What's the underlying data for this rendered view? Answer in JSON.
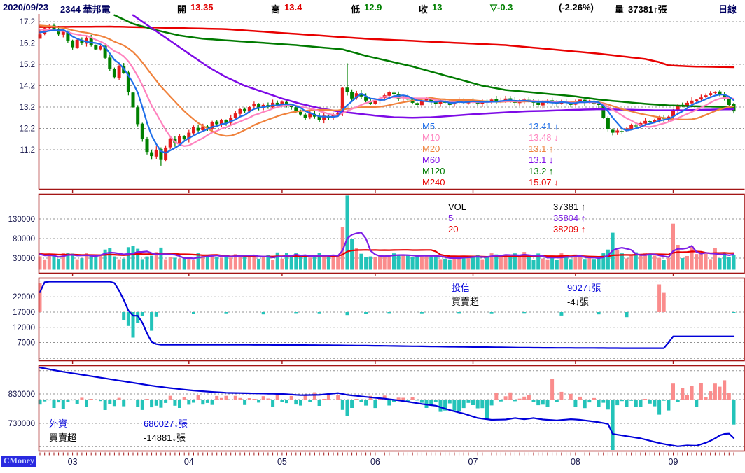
{
  "header": {
    "date": "2020/09/23",
    "stock": "2344 華邦電",
    "open_label": "開",
    "open": "13.35",
    "high_label": "高",
    "high": "13.4",
    "low_label": "低",
    "low": "12.9",
    "close_label": "收",
    "close": "13",
    "change": "▽-0.3",
    "change_pct": "(-2.26%)",
    "volume_label": "量",
    "volume": "37381↑張",
    "period": "日線"
  },
  "colors": {
    "up": "#e51c1c",
    "down": "#008000",
    "m5": "#1e6eea",
    "m10": "#ff82be",
    "m20": "#f0823c",
    "m60": "#7d0ae6",
    "m120": "#007a00",
    "m240": "#e80000",
    "volUp": "#fa8c8c",
    "volDown": "#23c3b9",
    "volMa5": "#7d1ee6",
    "volMa20": "#e80000",
    "instLine": "#0000d9",
    "border": "#a31515",
    "grid": "#909090",
    "axis": "#14144a",
    "black": "#000000",
    "navy": "#000060",
    "red": "#e00000",
    "green": "#008000"
  },
  "main_legend": [
    {
      "label": "M5",
      "value": "13.41 ↓",
      "color": "#1e6eea"
    },
    {
      "label": "M10",
      "value": "13.48 ↓",
      "color": "#ff82be"
    },
    {
      "label": "M20",
      "value": "13.1 ↑",
      "color": "#f0823c"
    },
    {
      "label": "M60",
      "value": "13.1 ↓",
      "color": "#7d0ae6"
    },
    {
      "label": "M120",
      "value": "13.2 ↑",
      "color": "#007a00"
    },
    {
      "label": "M240",
      "value": "15.07 ↓",
      "color": "#e80000"
    }
  ],
  "vol_legend": [
    {
      "label": "VOL",
      "value": "37381 ↑",
      "color": "#000000"
    },
    {
      "label": "5",
      "value": "35804 ↑",
      "color": "#7d1ee6"
    },
    {
      "label": "20",
      "value": "38209 ↑",
      "color": "#e80000"
    }
  ],
  "trust_legend": {
    "name": "投信",
    "name2": "買賣超",
    "v1": "9027↓張",
    "v2": "-4↓張",
    "name_color": "#0000d9",
    "v1_color": "#0000d9",
    "v2_color": "#000000"
  },
  "foreign_legend": {
    "name": "外資",
    "name2": "買賣超",
    "v1": "680027↓張",
    "v2": "-14881↓張",
    "name_color": "#0000d9",
    "v1_color": "#0000d9",
    "v2_color": "#000000"
  },
  "logo": "CMoney",
  "chart_data": {
    "type": "candlestick",
    "title": "2344 華邦電 日線 2020/09/23",
    "months": {
      "labels": [
        "03",
        "04",
        "05",
        "06",
        "07",
        "08",
        "09"
      ],
      "start_indices": [
        7,
        32,
        52,
        72,
        93,
        115,
        136
      ]
    },
    "panels": {
      "price": {
        "ticks": [
          17.2,
          16.2,
          15.2,
          14.2,
          13.2,
          12.2,
          11.2
        ],
        "pre_closes": [
          17.1,
          17.2,
          17.3,
          17.35,
          17.3,
          17.25,
          17.3,
          17.2,
          17.15,
          17.1,
          17.05,
          17.0,
          17.05,
          16.95,
          16.9,
          16.85,
          16.8,
          16.75,
          16.7,
          16.65
        ],
        "closes": [
          16.6,
          16.9,
          17.0,
          16.85,
          16.6,
          16.75,
          16.3,
          16.0,
          16.35,
          16.2,
          16.45,
          16.1,
          15.9,
          16.05,
          15.5,
          15.0,
          14.6,
          15.1,
          14.8,
          13.9,
          13.2,
          12.4,
          11.7,
          11.1,
          10.9,
          11.2,
          10.75,
          11.3,
          11.7,
          11.5,
          11.85,
          11.7,
          12.0,
          12.25,
          12.1,
          12.3,
          12.2,
          12.5,
          12.4,
          12.6,
          12.45,
          12.7,
          12.9,
          13.1,
          13.0,
          13.2,
          13.35,
          13.15,
          13.3,
          13.2,
          13.4,
          13.3,
          13.45,
          13.3,
          13.2,
          13.0,
          12.85,
          12.7,
          12.9,
          12.75,
          12.6,
          12.8,
          12.7,
          12.85,
          12.9,
          14.1,
          13.9,
          13.6,
          13.85,
          13.7,
          13.5,
          13.35,
          13.5,
          13.6,
          13.75,
          13.9,
          13.8,
          13.6,
          13.7,
          13.55,
          13.4,
          13.3,
          13.5,
          13.6,
          13.45,
          13.35,
          13.5,
          13.4,
          13.3,
          13.45,
          13.55,
          13.4,
          13.5,
          13.45,
          13.35,
          13.5,
          13.4,
          13.55,
          13.45,
          13.5,
          13.6,
          13.5,
          13.4,
          13.45,
          13.55,
          13.5,
          13.4,
          13.3,
          13.45,
          13.5,
          13.4,
          13.35,
          13.45,
          13.4,
          13.3,
          13.45,
          13.55,
          13.4,
          13.5,
          13.35,
          13.3,
          12.7,
          12.15,
          12.0,
          12.1,
          12.05,
          12.2,
          12.35,
          12.3,
          12.45,
          12.55,
          12.5,
          12.6,
          12.7,
          12.65,
          12.75,
          13.05,
          13.3,
          13.25,
          13.4,
          13.5,
          13.55,
          13.65,
          13.75,
          13.85,
          13.9,
          13.8,
          13.6,
          13.3,
          13.0
        ],
        "special": {
          "0": {
            "o": 16.4
          },
          "26": {
            "l": 10.45
          },
          "65": {
            "o": 12.95
          },
          "66": {
            "h": 15.25
          },
          "149": {
            "o": 13.35,
            "h": 13.4,
            "l": 12.9
          }
        },
        "ma_overlays": {
          "m60": [
            [
              20,
              17.5
            ],
            [
              24,
              16.9
            ],
            [
              28,
              16.3
            ],
            [
              32,
              15.7
            ],
            [
              36,
              15.1
            ],
            [
              40,
              14.6
            ],
            [
              44,
              14.2
            ],
            [
              48,
              13.9
            ],
            [
              52,
              13.6
            ],
            [
              56,
              13.35
            ],
            [
              60,
              13.15
            ],
            [
              64,
              13.0
            ],
            [
              68,
              12.9
            ],
            [
              72,
              12.8
            ],
            [
              76,
              12.72
            ],
            [
              80,
              12.7
            ],
            [
              84,
              12.72
            ],
            [
              88,
              12.78
            ],
            [
              92,
              12.85
            ],
            [
              96,
              12.9
            ],
            [
              100,
              12.95
            ],
            [
              104,
              13.0
            ],
            [
              108,
              13.02
            ],
            [
              112,
              13.05
            ],
            [
              116,
              13.08
            ],
            [
              120,
              13.1
            ],
            [
              126,
              13.08
            ],
            [
              132,
              13.05
            ],
            [
              138,
              13.05
            ],
            [
              144,
              13.08
            ],
            [
              149,
              13.1
            ]
          ],
          "m120": [
            [
              16,
              17.5
            ],
            [
              20,
              17.1
            ],
            [
              25,
              16.8
            ],
            [
              30,
              16.55
            ],
            [
              35,
              16.4
            ],
            [
              45,
              16.25
            ],
            [
              55,
              16.1
            ],
            [
              60,
              16.0
            ],
            [
              65,
              15.9
            ],
            [
              70,
              15.6
            ],
            [
              75,
              15.35
            ],
            [
              80,
              15.1
            ],
            [
              85,
              14.8
            ],
            [
              90,
              14.5
            ],
            [
              95,
              14.2
            ],
            [
              100,
              14.0
            ],
            [
              105,
              13.9
            ],
            [
              110,
              13.8
            ],
            [
              115,
              13.7
            ],
            [
              120,
              13.55
            ],
            [
              125,
              13.45
            ],
            [
              130,
              13.35
            ],
            [
              135,
              13.28
            ],
            [
              140,
              13.24
            ],
            [
              149,
              13.2
            ]
          ],
          "m240": [
            [
              0,
              16.95
            ],
            [
              15,
              16.97
            ],
            [
              30,
              16.9
            ],
            [
              40,
              16.85
            ],
            [
              50,
              16.7
            ],
            [
              60,
              16.55
            ],
            [
              70,
              16.4
            ],
            [
              80,
              16.3
            ],
            [
              90,
              16.2
            ],
            [
              100,
              16.1
            ],
            [
              110,
              15.9
            ],
            [
              120,
              15.7
            ],
            [
              130,
              15.45
            ],
            [
              133,
              15.3
            ],
            [
              135,
              15.15
            ],
            [
              140,
              15.1
            ],
            [
              149,
              15.07
            ]
          ]
        }
      },
      "volume": {
        "ticks": [
          130000,
          80000,
          30000
        ],
        "base_min": 26000,
        "base_max": 46000,
        "spikes": {
          "14": 52000,
          "15": 56000,
          "19": 58000,
          "20": 62000,
          "21": 54000,
          "26": 57000,
          "65": 110000,
          "66": 190000,
          "67": 80000,
          "68": 56000,
          "122": 52000,
          "123": 95000,
          "124": 52000,
          "136": 118000,
          "137": 64000,
          "140": 60000,
          "145": 56000,
          "149": 37381
        }
      },
      "trust": {
        "labeled_ticks": [
          22000,
          17000,
          12000,
          7000
        ],
        "grid_values": [
          27200,
          22000,
          17000,
          12000,
          7000,
          1800
        ],
        "bar_baseline_value": 17000,
        "line_anchors": [
          [
            0,
            23500
          ],
          [
            1,
            26800
          ],
          [
            2,
            27000
          ],
          [
            15,
            27000
          ],
          [
            16,
            26500
          ],
          [
            17,
            24000
          ],
          [
            18,
            21000
          ],
          [
            19,
            17500
          ],
          [
            20,
            15800
          ],
          [
            21,
            15800
          ],
          [
            22,
            13500
          ],
          [
            23,
            10000
          ],
          [
            24,
            7200
          ],
          [
            25,
            6500
          ],
          [
            26,
            6300
          ],
          [
            40,
            6300
          ],
          [
            55,
            6200
          ],
          [
            70,
            6000
          ],
          [
            85,
            5700
          ],
          [
            95,
            5500
          ],
          [
            100,
            5400
          ],
          [
            105,
            5300
          ],
          [
            110,
            5250
          ],
          [
            120,
            5200
          ],
          [
            125,
            5150
          ],
          [
            134,
            5150
          ],
          [
            135,
            7000
          ],
          [
            136,
            9031
          ],
          [
            148,
            9031
          ],
          [
            149,
            9027
          ]
        ],
        "bars": [
          [
            0,
            5500
          ],
          [
            18,
            -1500
          ],
          [
            19,
            -2600
          ],
          [
            20,
            -4800
          ],
          [
            21,
            -2100
          ],
          [
            22,
            -700
          ],
          [
            24,
            -3500
          ],
          [
            25,
            -900
          ],
          [
            33,
            -400
          ],
          [
            40,
            -350
          ],
          [
            48,
            -420
          ],
          [
            55,
            -320
          ],
          [
            60,
            -350
          ],
          [
            66,
            -550
          ],
          [
            70,
            -400
          ],
          [
            75,
            -320
          ],
          [
            82,
            -360
          ],
          [
            90,
            -320
          ],
          [
            97,
            -350
          ],
          [
            104,
            -300
          ],
          [
            112,
            -650
          ],
          [
            120,
            -420
          ],
          [
            126,
            -950
          ],
          [
            133,
            5200
          ],
          [
            134,
            3600
          ],
          [
            149,
            -4
          ]
        ]
      },
      "foreign": {
        "labeled_ticks": [
          830000,
          730000
        ],
        "grid_values": [
          909000,
          830000,
          811000,
          730000,
          651000
        ],
        "bar_baseline_value": 811000,
        "line_anchors": [
          [
            0,
            920000
          ],
          [
            4,
            908000
          ],
          [
            8,
            898000
          ],
          [
            12,
            888000
          ],
          [
            16,
            878000
          ],
          [
            20,
            868000
          ],
          [
            24,
            858000
          ],
          [
            28,
            850000
          ],
          [
            32,
            843000
          ],
          [
            36,
            838000
          ],
          [
            40,
            834000
          ],
          [
            46,
            832000
          ],
          [
            52,
            830000
          ],
          [
            56,
            826000
          ],
          [
            60,
            827000
          ],
          [
            64,
            833000
          ],
          [
            66,
            827000
          ],
          [
            70,
            820000
          ],
          [
            74,
            814000
          ],
          [
            78,
            806000
          ],
          [
            82,
            796000
          ],
          [
            85,
            790000
          ],
          [
            88,
            775000
          ],
          [
            91,
            763000
          ],
          [
            94,
            748000
          ],
          [
            97,
            742000
          ],
          [
            100,
            743000
          ],
          [
            102,
            748000
          ],
          [
            104,
            744000
          ],
          [
            106,
            748000
          ],
          [
            108,
            743000
          ],
          [
            111,
            740000
          ],
          [
            114,
            744000
          ],
          [
            116,
            742000
          ],
          [
            118,
            738000
          ],
          [
            120,
            734000
          ],
          [
            122,
            728000
          ],
          [
            123,
            694000
          ],
          [
            125,
            689000
          ],
          [
            127,
            684000
          ],
          [
            129,
            679000
          ],
          [
            131,
            671000
          ],
          [
            133,
            663000
          ],
          [
            135,
            657000
          ],
          [
            137,
            652000
          ],
          [
            139,
            655000
          ],
          [
            141,
            654000
          ],
          [
            142,
            659000
          ],
          [
            143,
            664000
          ],
          [
            144,
            671000
          ],
          [
            145,
            679000
          ],
          [
            146,
            689000
          ],
          [
            147,
            694000
          ],
          [
            148,
            695000
          ],
          [
            149,
            680027
          ]
        ],
        "bar_overrides": {
          "0": -3000,
          "66": -10000,
          "96": -12000,
          "110": 12500,
          "123": -35000,
          "133": -9000,
          "136": 9500,
          "138": 7000,
          "140": 8000,
          "142": 10000,
          "145": 9500,
          "147": 11500,
          "148": 4000,
          "149": -14881
        }
      }
    }
  }
}
